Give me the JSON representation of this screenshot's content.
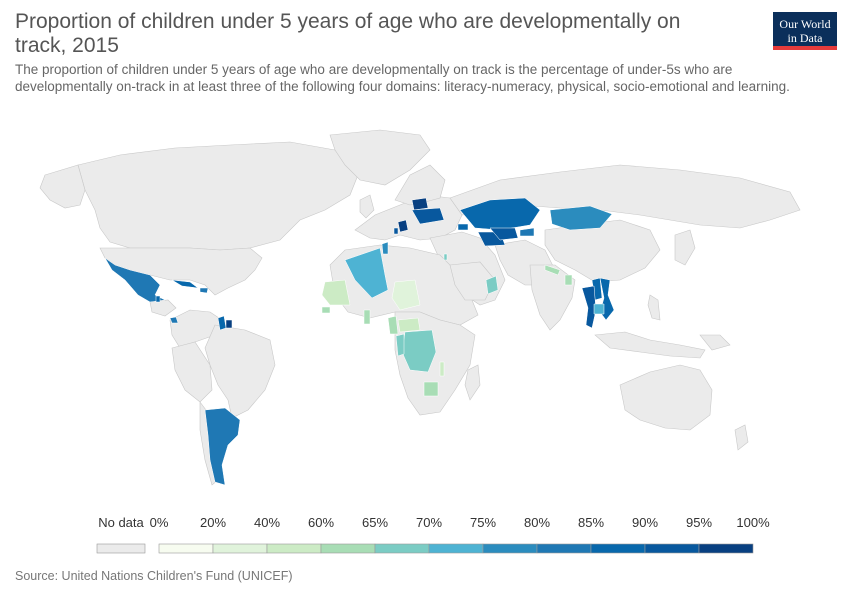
{
  "title": "Proportion of children under 5 years of age who are developmentally on track, 2015",
  "subtitle": "The proportion of children under 5 years of age who are developmentally on track is the percentage of under-5s who are developmentally on-track in at least three of the following four domains: literacy-numeracy, physical, socio-emotional and learning.",
  "logo": {
    "line1": "Our World",
    "line2": "in Data"
  },
  "source": "Source: United Nations Children's Fund (UNICEF)",
  "colors": {
    "no_data": "#ebebeb",
    "land_stroke": "#c8c8c8",
    "ocean": "#ffffff"
  },
  "legend": {
    "no_data_label": "No data",
    "bins": [
      {
        "label": "0%",
        "color": "#f7fcf0"
      },
      {
        "label": "20%",
        "color": "#e0f3db"
      },
      {
        "label": "40%",
        "color": "#ccebc5"
      },
      {
        "label": "60%",
        "color": "#a8ddb5"
      },
      {
        "label": "65%",
        "color": "#7bccc4"
      },
      {
        "label": "70%",
        "color": "#4eb3d3"
      },
      {
        "label": "75%",
        "color": "#2b8cbe"
      },
      {
        "label": "80%",
        "color": "#1f78b4"
      },
      {
        "label": "85%",
        "color": "#0868ac"
      },
      {
        "label": "90%",
        "color": "#08589e"
      },
      {
        "label": "95%",
        "color": "#084081"
      }
    ],
    "end_label": "100%"
  },
  "countries": [
    {
      "name": "Mexico",
      "value": 82
    },
    {
      "name": "Cuba",
      "value": 88
    },
    {
      "name": "Dominican Republic",
      "value": 85
    },
    {
      "name": "Belize",
      "value": 88
    },
    {
      "name": "Costa Rica",
      "value": 80
    },
    {
      "name": "Guyana",
      "value": 86
    },
    {
      "name": "Suriname",
      "value": 90
    },
    {
      "name": "Argentina",
      "value": 83
    },
    {
      "name": "Algeria",
      "value": 74
    },
    {
      "name": "Tunisia",
      "value": 76
    },
    {
      "name": "Mauritania",
      "value": 60
    },
    {
      "name": "Senegal",
      "value": 61
    },
    {
      "name": "Niger",
      "value": 45
    },
    {
      "name": "Ghana",
      "value": 62
    },
    {
      "name": "Cameroon",
      "value": 61
    },
    {
      "name": "Central African Republic",
      "value": 58
    },
    {
      "name": "Democratic Republic of the Congo",
      "value": 67
    },
    {
      "name": "Congo",
      "value": 67
    },
    {
      "name": "Malawi",
      "value": 60
    },
    {
      "name": "Zimbabwe",
      "value": 71
    },
    {
      "name": "Oman",
      "value": 68
    },
    {
      "name": "Palestine",
      "value": 69
    },
    {
      "name": "Belarus",
      "value": 93
    },
    {
      "name": "Ukraine",
      "value": 92
    },
    {
      "name": "Serbia",
      "value": 96
    },
    {
      "name": "Montenegro",
      "value": 92
    },
    {
      "name": "Georgia",
      "value": 87
    },
    {
      "name": "Kazakhstan",
      "value": 88
    },
    {
      "name": "Kyrgyzstan",
      "value": 80
    },
    {
      "name": "Turkmenistan",
      "value": 92
    },
    {
      "name": "Uzbekistan",
      "value": 91
    },
    {
      "name": "Mongolia",
      "value": 77
    },
    {
      "name": "Nepal",
      "value": 64
    },
    {
      "name": "Bangladesh",
      "value": 63
    },
    {
      "name": "Laos",
      "value": 88
    },
    {
      "name": "Thailand",
      "value": 91
    },
    {
      "name": "Vietnam",
      "value": 88
    },
    {
      "name": "Cambodia",
      "value": 70
    }
  ]
}
